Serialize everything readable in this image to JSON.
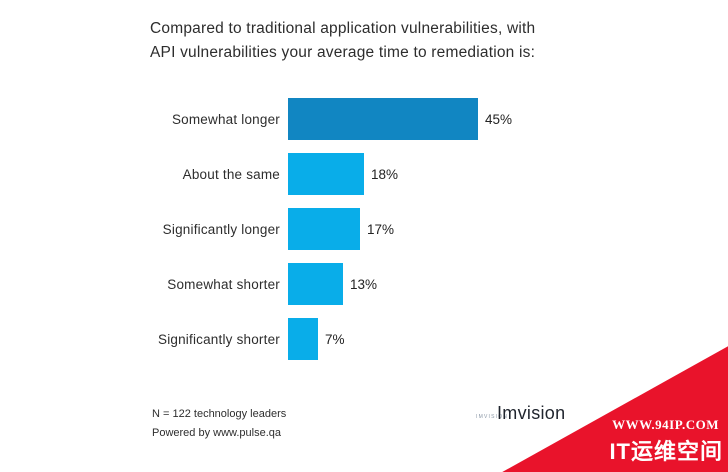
{
  "title": {
    "line1": "Compared to traditional application vulnerabilities,  with",
    "line2": "API vulnerabilities your average time to remediation is:"
  },
  "chart_data": {
    "type": "bar",
    "orientation": "horizontal",
    "title": "Compared to traditional application vulnerabilities, with API vulnerabilities your average time to remediation is:",
    "categories": [
      "Somewhat longer",
      "About the same",
      "Significantly longer",
      "Somewhat shorter",
      "Significantly shorter"
    ],
    "values": [
      45,
      18,
      17,
      13,
      7
    ],
    "value_labels": [
      "45%",
      "18%",
      "17%",
      "13%",
      "7%"
    ],
    "bar_colors": [
      "#1186C2",
      "#09ADE9",
      "#09ADE9",
      "#09ADE9",
      "#09ADE9"
    ],
    "xlabel": "",
    "ylabel": "",
    "xlim": [
      0,
      50
    ],
    "grid": false,
    "legend": false
  },
  "footer": {
    "note1": "N = 122 technology leaders",
    "note2": "Powered by www.pulse.qa"
  },
  "logo": {
    "mark": "IMVISION",
    "wordmark": "Imvision"
  },
  "watermark": {
    "line1": "WWW.94IP.COM",
    "line2": "IT运维空间",
    "triangle_color": "#E9132B",
    "text_color": "#FFFFFF"
  }
}
